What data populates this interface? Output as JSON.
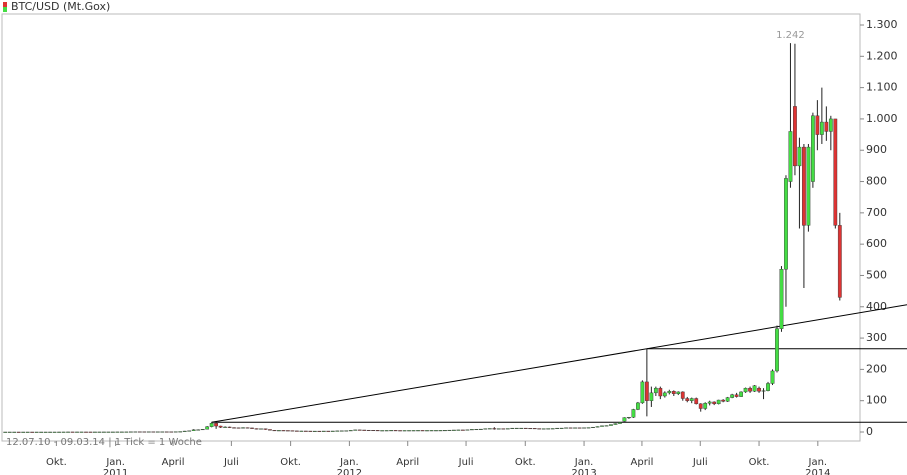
{
  "chart_data": {
    "type": "candlestick",
    "title": "BTC/USD (Mt.Gox)",
    "footer": "12.07.10 - 09.03.14 | 1 Tick = 1 Woche",
    "colors": {
      "up": "#44dd44",
      "down": "#dd3333"
    },
    "xlim": [
      -0.5,
      190.5
    ],
    "ylim": [
      0,
      1300
    ],
    "yticks": [
      0,
      100,
      200,
      300,
      400,
      500,
      600,
      700,
      800,
      900,
      {
        "value": 1000,
        "label": "1.000"
      },
      {
        "value": 1100,
        "label": "1.100"
      },
      {
        "value": 1200,
        "label": "1.200"
      },
      {
        "value": 1300,
        "label": "1.300"
      }
    ],
    "xticks": [
      {
        "value": 11.4,
        "label": "Okt."
      },
      {
        "value": 24.6,
        "label": "Jan."
      },
      {
        "value": 37.4,
        "label": "April"
      },
      {
        "value": 50.4,
        "label": "Juli"
      },
      {
        "value": 63.6,
        "label": "Okt."
      },
      {
        "value": 76.7,
        "label": "Jan."
      },
      {
        "value": 89.7,
        "label": "April"
      },
      {
        "value": 102.7,
        "label": "Juli"
      },
      {
        "value": 115.9,
        "label": "Okt."
      },
      {
        "value": 129,
        "label": "Jan."
      },
      {
        "value": 141.9,
        "label": "April"
      },
      {
        "value": 154.9,
        "label": "Juli"
      },
      {
        "value": 168,
        "label": "Okt."
      },
      {
        "value": 181.1,
        "label": "Jan."
      }
    ],
    "years": [
      {
        "value": 24.6,
        "label": "2011"
      },
      {
        "value": 76.7,
        "label": "2012"
      },
      {
        "value": 129,
        "label": "2013"
      },
      {
        "value": 181.1,
        "label": "2014"
      }
    ],
    "annotations": [
      {
        "label": "1.242",
        "value": 1242
      }
    ],
    "trendline": [
      [
        46,
        31
      ],
      [
        143,
        266
      ]
    ],
    "hlines": [
      {
        "start": 46,
        "value": 31
      },
      {
        "start": 143,
        "value": 266
      }
    ],
    "candles": [
      [
        0.05,
        0.1,
        0.05,
        0.07
      ],
      [
        0.07,
        0.09,
        0.06,
        0.07
      ],
      [
        0.07,
        0.08,
        0.06,
        0.07
      ],
      [
        0.07,
        0.07,
        0.06,
        0.06
      ],
      [
        0.06,
        0.07,
        0.06,
        0.07
      ],
      [
        0.07,
        0.07,
        0.06,
        0.07
      ],
      [
        0.07,
        0.07,
        0.06,
        0.06
      ],
      [
        0.06,
        0.07,
        0.06,
        0.06
      ],
      [
        0.06,
        0.07,
        0.06,
        0.06
      ],
      [
        0.06,
        0.07,
        0.06,
        0.07
      ],
      [
        0.07,
        0.1,
        0.06,
        0.1
      ],
      [
        0.1,
        0.11,
        0.09,
        0.1
      ],
      [
        0.1,
        0.2,
        0.1,
        0.15
      ],
      [
        0.15,
        0.2,
        0.1,
        0.2
      ],
      [
        0.2,
        0.5,
        0.2,
        0.3
      ],
      [
        0.3,
        0.3,
        0.2,
        0.28
      ],
      [
        0.28,
        0.3,
        0.2,
        0.28
      ],
      [
        0.28,
        0.3,
        0.25,
        0.28
      ],
      [
        0.28,
        0.3,
        0.22,
        0.24
      ],
      [
        0.24,
        0.26,
        0.2,
        0.22
      ],
      [
        0.22,
        0.25,
        0.2,
        0.25
      ],
      [
        0.25,
        0.27,
        0.23,
        0.25
      ],
      [
        0.25,
        0.3,
        0.24,
        0.3
      ],
      [
        0.3,
        0.3,
        0.26,
        0.3
      ],
      [
        0.3,
        0.32,
        0.29,
        0.3
      ],
      [
        0.3,
        0.4,
        0.3,
        0.4
      ],
      [
        0.4,
        0.45,
        0.38,
        0.42
      ],
      [
        0.42,
        0.5,
        0.4,
        0.48
      ],
      [
        0.48,
        0.8,
        0.46,
        0.75
      ],
      [
        0.75,
        1.1,
        0.7,
        0.95
      ],
      [
        0.95,
        1.1,
        0.85,
        0.9
      ],
      [
        0.9,
        1,
        0.8,
        0.85
      ],
      [
        0.85,
        0.95,
        0.8,
        0.9
      ],
      [
        0.9,
        0.95,
        0.75,
        0.8
      ],
      [
        0.8,
        0.85,
        0.7,
        0.8
      ],
      [
        0.8,
        0.9,
        0.76,
        0.85
      ],
      [
        0.85,
        0.9,
        0.7,
        0.78
      ],
      [
        0.78,
        0.8,
        0.7,
        0.75
      ],
      [
        0.75,
        1.2,
        0.7,
        1.1
      ],
      [
        1.1,
        1.6,
        1,
        1.5
      ],
      [
        1.5,
        3.5,
        1.5,
        3
      ],
      [
        3,
        4.5,
        2.8,
        3.9
      ],
      [
        3.9,
        9,
        3.7,
        7
      ],
      [
        7,
        8.5,
        6,
        7.2
      ],
      [
        7.2,
        9,
        7,
        8.8
      ],
      [
        8.8,
        19,
        8.5,
        17
      ],
      [
        17,
        31,
        15,
        28
      ],
      [
        28,
        30,
        10,
        19
      ],
      [
        19,
        20,
        13,
        15
      ],
      [
        15,
        18,
        14,
        16
      ],
      [
        16,
        17,
        13,
        14
      ],
      [
        14,
        15,
        13,
        13.5
      ],
      [
        13.5,
        14,
        12,
        13
      ],
      [
        13,
        15,
        13,
        14
      ],
      [
        14,
        14.5,
        12,
        13
      ],
      [
        13,
        13.5,
        10,
        11
      ],
      [
        11,
        11.5,
        8,
        9
      ],
      [
        9,
        11,
        8,
        10.5
      ],
      [
        10.5,
        11,
        7,
        8
      ],
      [
        8,
        8.5,
        5,
        5.5
      ],
      [
        5.5,
        6,
        4.5,
        5
      ],
      [
        5,
        5.5,
        4.5,
        5.1
      ],
      [
        5.1,
        5.2,
        4.5,
        4.8
      ],
      [
        4.8,
        5.1,
        4.2,
        4.5
      ],
      [
        4.5,
        4.6,
        3.5,
        3.6
      ],
      [
        3.6,
        4,
        2.5,
        3
      ],
      [
        3,
        3.5,
        2.8,
        3.3
      ],
      [
        3.3,
        3.4,
        2.9,
        3.1
      ],
      [
        3.1,
        3.2,
        2.1,
        2.3
      ],
      [
        2.3,
        3,
        2.2,
        2.9
      ],
      [
        2.9,
        3,
        2.5,
        2.7
      ],
      [
        2.7,
        3.2,
        2.6,
        3.1
      ],
      [
        3.1,
        3.2,
        2.9,
        3
      ],
      [
        3,
        3.3,
        2.9,
        3.2
      ],
      [
        3.2,
        3.8,
        3.1,
        3.7
      ],
      [
        3.7,
        4,
        3.6,
        3.9
      ],
      [
        3.9,
        4.5,
        3.8,
        4.3
      ],
      [
        4.3,
        5.3,
        4.2,
        5.2
      ],
      [
        5.2,
        7,
        5.1,
        6.8
      ],
      [
        6.8,
        7.2,
        6,
        6.4
      ],
      [
        6.4,
        6.5,
        5.6,
        5.8
      ],
      [
        5.8,
        6,
        5.5,
        5.7
      ],
      [
        5.7,
        6,
        5.2,
        5.4
      ],
      [
        5.4,
        5.8,
        4.3,
        4.5
      ],
      [
        4.5,
        5,
        4.2,
        4.9
      ],
      [
        4.9,
        5.2,
        4.7,
        5
      ],
      [
        5,
        5.4,
        4.8,
        5.3
      ],
      [
        5.3,
        5.4,
        4.8,
        4.9
      ],
      [
        4.9,
        5,
        4.6,
        4.8
      ],
      [
        4.8,
        5,
        4.7,
        4.9
      ],
      [
        4.9,
        5,
        4.8,
        4.95
      ],
      [
        4.95,
        5.1,
        4.8,
        5
      ],
      [
        5,
        5.2,
        4.9,
        5.1
      ],
      [
        5.1,
        5.2,
        4.9,
        5
      ],
      [
        5,
        5.1,
        4.9,
        5
      ],
      [
        5,
        5.2,
        4.9,
        5.1
      ],
      [
        5.1,
        5.2,
        5,
        5.1
      ],
      [
        5.1,
        5.3,
        5,
        5.2
      ],
      [
        5.2,
        5.5,
        5.1,
        5.5
      ],
      [
        5.5,
        6,
        5.4,
        5.9
      ],
      [
        5.9,
        6.5,
        5.8,
        6.4
      ],
      [
        6.4,
        6.8,
        6.2,
        6.7
      ],
      [
        6.7,
        6.8,
        6.4,
        6.6
      ],
      [
        6.6,
        7.3,
        6.5,
        7.2
      ],
      [
        7.2,
        8.5,
        7,
        8.4
      ],
      [
        8.4,
        9,
        8.2,
        8.9
      ],
      [
        8.9,
        9.3,
        8.5,
        9.2
      ],
      [
        9.2,
        11,
        9.1,
        10.8
      ],
      [
        10.8,
        11.5,
        10.5,
        11.2
      ],
      [
        11.2,
        15.4,
        7.5,
        10.5
      ],
      [
        10.5,
        11,
        10,
        10.8
      ],
      [
        10.8,
        11,
        10.2,
        10.5
      ],
      [
        10.5,
        11.2,
        10.4,
        11.1
      ],
      [
        11.1,
        12.5,
        11,
        12.3
      ],
      [
        12.3,
        12.5,
        11.9,
        12.4
      ],
      [
        12.4,
        12.6,
        12.1,
        12.4
      ],
      [
        12.4,
        12.5,
        11.8,
        12
      ],
      [
        12,
        12.2,
        11.5,
        11.8
      ],
      [
        11.8,
        11.9,
        10.5,
        11
      ],
      [
        11,
        11.2,
        10.5,
        10.7
      ],
      [
        10.7,
        10.9,
        10.5,
        10.8
      ],
      [
        10.8,
        11.2,
        10.7,
        11
      ],
      [
        11,
        11.5,
        10.9,
        11.2
      ],
      [
        11.2,
        12.5,
        11.1,
        12.3
      ],
      [
        12.3,
        12.6,
        12,
        12.5
      ],
      [
        12.5,
        13.7,
        12.4,
        13.5
      ],
      [
        13.5,
        13.6,
        12.8,
        13.3
      ],
      [
        13.3,
        13.6,
        13,
        13.5
      ],
      [
        13.5,
        13.6,
        13.2,
        13.4
      ],
      [
        13.4,
        14,
        13.3,
        13.7
      ],
      [
        13.7,
        14.3,
        13.5,
        14.2
      ],
      [
        14.2,
        15.5,
        14,
        15.4
      ],
      [
        15.4,
        18,
        15.2,
        17.5
      ],
      [
        17.5,
        20,
        17.3,
        19.8
      ],
      [
        19.8,
        21,
        19.5,
        20.6
      ],
      [
        20.6,
        24,
        20.3,
        23.8
      ],
      [
        23.8,
        27.5,
        23.5,
        27
      ],
      [
        27,
        31,
        26.5,
        30.5
      ],
      [
        34.5,
        47,
        33,
        46
      ],
      [
        46,
        48,
        42,
        47
      ],
      [
        47,
        74,
        45,
        72
      ],
      [
        72,
        96,
        70,
        93
      ],
      [
        93,
        165,
        90,
        160
      ],
      [
        160,
        266,
        50,
        100
      ],
      [
        100,
        145,
        80,
        125
      ],
      [
        125,
        145,
        115,
        140
      ],
      [
        140,
        145,
        105,
        115
      ],
      [
        115,
        130,
        110,
        125
      ],
      [
        125,
        135,
        120,
        130
      ],
      [
        130,
        133,
        115,
        122
      ],
      [
        122,
        130,
        118,
        128
      ],
      [
        128,
        130,
        100,
        107
      ],
      [
        107,
        112,
        95,
        100
      ],
      [
        100,
        110,
        92,
        107
      ],
      [
        107,
        110,
        88,
        90
      ],
      [
        90,
        92,
        65,
        75
      ],
      [
        75,
        95,
        70,
        92
      ],
      [
        92,
        100,
        85,
        96
      ],
      [
        96,
        98,
        86,
        90
      ],
      [
        90,
        103,
        88,
        102
      ],
      [
        102,
        105,
        95,
        98
      ],
      [
        98,
        112,
        96,
        110
      ],
      [
        110,
        122,
        108,
        119
      ],
      [
        119,
        125,
        110,
        113
      ],
      [
        113,
        130,
        112,
        128
      ],
      [
        128,
        142,
        125,
        140
      ],
      [
        140,
        145,
        125,
        130
      ],
      [
        130,
        150,
        128,
        148
      ],
      [
        140,
        145,
        125,
        130
      ],
      [
        130,
        140,
        105,
        132
      ],
      [
        132,
        160,
        130,
        155
      ],
      [
        155,
        200,
        150,
        195
      ],
      [
        195,
        340,
        190,
        330
      ],
      [
        330,
        530,
        320,
        520
      ],
      [
        520,
        820,
        400,
        810
      ],
      [
        800,
        1242,
        780,
        960
      ],
      [
        1040,
        1240,
        820,
        850
      ],
      [
        850,
        940,
        650,
        910
      ],
      [
        910,
        920,
        460,
        660
      ],
      [
        660,
        920,
        640,
        910
      ],
      [
        800,
        1020,
        780,
        1010
      ],
      [
        1010,
        1060,
        900,
        950
      ],
      [
        950,
        1100,
        920,
        990
      ],
      [
        990,
        1040,
        930,
        960
      ],
      [
        960,
        1010,
        900,
        1000
      ],
      [
        1000,
        1000,
        650,
        660
      ],
      [
        660,
        700,
        420,
        430
      ]
    ]
  }
}
